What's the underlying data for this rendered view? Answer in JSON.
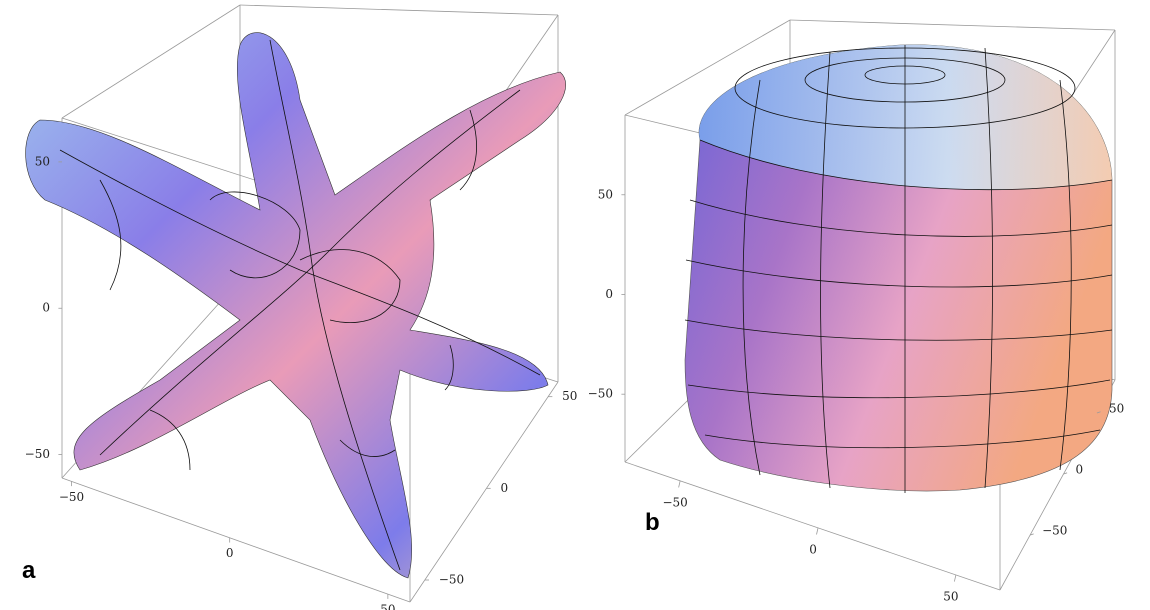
{
  "chart_data": [
    {
      "type": "surface3d",
      "label": "a",
      "xlim": [
        -53,
        57
      ],
      "xticks": [
        {
          "value": -50,
          "label": "−50"
        },
        0,
        50
      ],
      "ylim": [
        -62,
        58
      ],
      "yticks": [
        {
          "value": -50,
          "label": "−50"
        },
        0,
        50
      ],
      "zlim": [
        -58,
        65
      ],
      "zticks": [
        {
          "value": -50,
          "label": "−50"
        },
        0,
        50
      ]
    },
    {
      "type": "surface3d",
      "label": "b",
      "xlim": [
        -70,
        66
      ],
      "xticks": [
        {
          "value": -50,
          "label": "−50"
        },
        0,
        50
      ],
      "ylim": [
        -95,
        77
      ],
      "yticks": [
        {
          "value": -50,
          "label": "−50"
        },
        0,
        50
      ],
      "zlim": [
        -84,
        90
      ],
      "zticks": [
        {
          "value": -50,
          "label": "−50"
        },
        0,
        50
      ]
    }
  ]
}
